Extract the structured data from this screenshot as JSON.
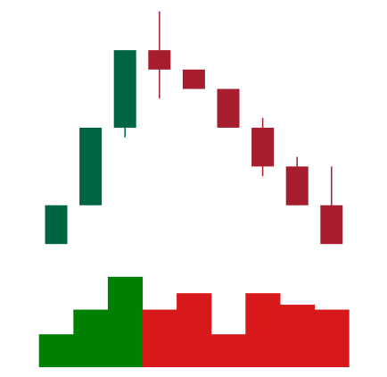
{
  "chart_data": {
    "type": "candlestick",
    "title": "",
    "xlabel": "",
    "ylabel": "",
    "grid": false,
    "legend": "none",
    "price_range": [
      0,
      100
    ],
    "volume_range": [
      0,
      100
    ],
    "candles": [
      {
        "open": 5,
        "high": 25,
        "low": 5,
        "close": 25
      },
      {
        "open": 25,
        "high": 65,
        "low": 25,
        "close": 65
      },
      {
        "open": 65,
        "high": 105,
        "low": 60,
        "close": 105
      },
      {
        "open": 105,
        "high": 125,
        "low": 80,
        "close": 95
      },
      {
        "open": 95,
        "high": 95,
        "low": 85,
        "close": 85
      },
      {
        "open": 85,
        "high": 85,
        "low": 65,
        "close": 65
      },
      {
        "open": 65,
        "high": 70,
        "low": 40,
        "close": 45
      },
      {
        "open": 45,
        "high": 50,
        "low": 25,
        "close": 25
      },
      {
        "open": 25,
        "high": 45,
        "low": 5,
        "close": 5
      }
    ],
    "volume": [
      20,
      35,
      55,
      35,
      45,
      20,
      45,
      38,
      35
    ],
    "colors": {
      "up_candle": "#006642",
      "down_candle": "#A61D2D",
      "up_volume": "#008000",
      "down_volume": "#D7191C"
    }
  }
}
